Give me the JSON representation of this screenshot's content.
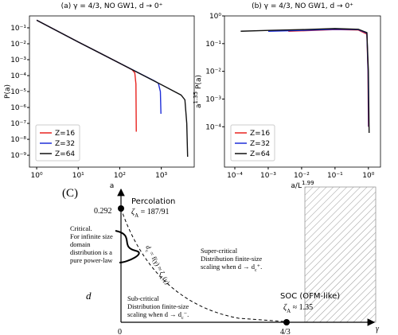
{
  "chart_data": [
    {
      "type": "line",
      "title": "(a) γ = 4/3, NO GW1, d → 0⁺",
      "xlabel": [
        {
          "text": "a"
        }
      ],
      "ylabel": [
        {
          "text": "P(a)"
        }
      ],
      "xscale": "log",
      "yscale": "log",
      "xlim": [
        0.67,
        6200
      ],
      "ylim": [
        1.8e-10,
        0.56
      ],
      "xticks": [
        {
          "value": 1,
          "label": "10⁰"
        },
        {
          "value": 10,
          "label": "10¹"
        },
        {
          "value": 100,
          "label": "10²"
        },
        {
          "value": 1000,
          "label": "10³"
        }
      ],
      "yticks": [
        {
          "value": 1e-09,
          "label": "10⁻⁹"
        },
        {
          "value": 1e-08,
          "label": "10⁻⁸"
        },
        {
          "value": 1e-07,
          "label": "10⁻⁷"
        },
        {
          "value": 1e-06,
          "label": "10⁻⁶"
        },
        {
          "value": 1e-05,
          "label": "10⁻⁵"
        },
        {
          "value": 0.0001,
          "label": "10⁻⁴"
        },
        {
          "value": 0.001,
          "label": "10⁻³"
        },
        {
          "value": 0.01,
          "label": "10⁻²"
        },
        {
          "value": 0.1,
          "label": "10⁻¹"
        }
      ],
      "legend": "lower left",
      "series": [
        {
          "name": "Z=16",
          "color": "#e8231f",
          "x": [
            1,
            10,
            100,
            200,
            230,
            245,
            250
          ],
          "values": [
            0.3,
            0.013,
            0.0006,
            0.00023,
            0.00015,
            3e-05,
            3e-08
          ]
        },
        {
          "name": "Z=32",
          "color": "#1f2fd8",
          "x": [
            1,
            10,
            100,
            700,
            850,
            950,
            980
          ],
          "values": [
            0.3,
            0.013,
            0.0006,
            4.5e-05,
            3.3e-05,
            1e-05,
            4e-07
          ]
        },
        {
          "name": "Z=64",
          "color": "#111111",
          "x": [
            1,
            10,
            100,
            1000,
            3000,
            3700,
            4100,
            4300
          ],
          "values": [
            0.3,
            0.013,
            0.0006,
            2.7e-05,
            6e-06,
            3e-06,
            1e-07,
            8e-10
          ]
        }
      ]
    },
    {
      "type": "line",
      "title": "(b) γ = 4/3, NO GW1, d → 0⁺",
      "xlabel": [
        {
          "text": "a/L"
        },
        {
          "text": "1.99",
          "sup": true
        }
      ],
      "ylabel": [
        {
          "text": "a"
        },
        {
          "text": "1.35",
          "sup": true
        },
        {
          "text": " P(a)"
        }
      ],
      "xscale": "log",
      "yscale": "log",
      "xlim": [
        4.9e-05,
        2.3
      ],
      "ylim": [
        3.5e-06,
        1
      ],
      "xticks": [
        {
          "value": 0.0001,
          "label": "10⁻⁴"
        },
        {
          "value": 0.001,
          "label": "10⁻³"
        },
        {
          "value": 0.01,
          "label": "10⁻²"
        },
        {
          "value": 0.1,
          "label": "10⁻¹"
        },
        {
          "value": 1,
          "label": "10⁰"
        }
      ],
      "yticks": [
        {
          "value": 0.0001,
          "label": "10⁻⁴"
        },
        {
          "value": 0.001,
          "label": "10⁻³"
        },
        {
          "value": 0.01,
          "label": "10⁻²"
        },
        {
          "value": 0.1,
          "label": "10⁻¹"
        },
        {
          "value": 1,
          "label": "10⁰"
        }
      ],
      "legend": "lower left",
      "series": [
        {
          "name": "Z=16",
          "color": "#e8231f",
          "x": [
            0.004,
            0.01,
            0.1,
            0.5,
            0.9,
            0.97,
            1.0
          ],
          "values": [
            0.28,
            0.29,
            0.32,
            0.31,
            0.22,
            0.01,
            0.0001
          ]
        },
        {
          "name": "Z=32",
          "color": "#1f2fd8",
          "x": [
            0.001,
            0.01,
            0.1,
            0.5,
            0.9,
            0.98,
            1.02
          ],
          "values": [
            0.28,
            0.3,
            0.33,
            0.32,
            0.24,
            0.01,
            0.0001
          ]
        },
        {
          "name": "Z=64",
          "color": "#111111",
          "x": [
            0.00015,
            0.001,
            0.01,
            0.1,
            0.5,
            0.9,
            1.0,
            1.05
          ],
          "values": [
            0.28,
            0.3,
            0.32,
            0.35,
            0.33,
            0.25,
            0.01,
            6e-05
          ]
        }
      ]
    }
  ],
  "diagram": {
    "label": "(C)",
    "y_axis": "d",
    "x_axis": "γ",
    "origin": "0",
    "y_mark": "0.292",
    "x_mark": "4/3",
    "percolation": "Percolation",
    "percolation_exponent": [
      "ζ",
      "A",
      " = 187/91"
    ],
    "critical": [
      "Critical.",
      "For infinite size",
      "domain",
      "distribution is a",
      "pure power-law"
    ],
    "curve_label": [
      "d",
      "c",
      " = f(γ) ≈ ζ",
      "A",
      "(γ)"
    ],
    "super_critical": [
      "Super-critical",
      "Distribution finite-size",
      "scaling when d → d",
      "c",
      "⁺."
    ],
    "sub_critical": [
      "Sub-critical",
      "Distribution finite-size",
      "scaling when d → d",
      "c",
      "⁻."
    ],
    "soc": "SOC (OFM-like)",
    "soc_exponent": [
      "ζ",
      "A",
      " ≈ 1.35"
    ]
  }
}
